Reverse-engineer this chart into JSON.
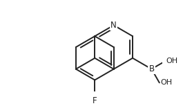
{
  "bg_color": "#ffffff",
  "bond_color": "#222222",
  "line_width": 1.4,
  "font_size": 8.5,
  "figsize": [
    2.65,
    1.53
  ],
  "dpi": 100,
  "atoms": {
    "N_label": "N",
    "B_label": "B",
    "F_label": "F",
    "OH1_label": "OH",
    "OH2_label": "OH"
  }
}
